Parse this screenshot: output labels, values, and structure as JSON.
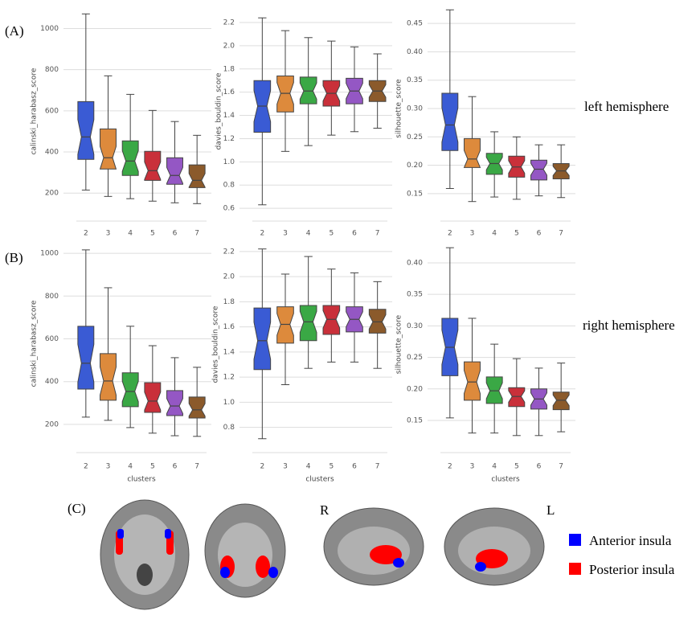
{
  "panels": [
    "(A)",
    "(B)",
    "(C)"
  ],
  "hemispheres": [
    "left hemisphere",
    "right hemisphere"
  ],
  "views": [
    "R",
    "L"
  ],
  "legend": [
    {
      "name": "Anterior insula",
      "color": "#0000ff"
    },
    {
      "name": "Posterior insula",
      "color": "#ff0000"
    }
  ],
  "chart_data": [
    {
      "type": "box",
      "ylabel": "calinski_harabasz_score",
      "categories": [
        "2",
        "3",
        "4",
        "5",
        "6",
        "7"
      ],
      "colors": [
        "#3a5bd4",
        "#dd8a3c",
        "#3aa845",
        "#c9303a",
        "#9457c4",
        "#8b5a2b"
      ],
      "min": [
        215,
        184,
        173,
        161,
        153,
        149
      ],
      "q1": [
        364,
        317,
        286,
        262,
        243,
        227
      ],
      "median": [
        473,
        372,
        356,
        309,
        286,
        262
      ],
      "q3": [
        645,
        512,
        454,
        403,
        372,
        337
      ],
      "max": [
        1071,
        770,
        680,
        602,
        548,
        481
      ],
      "ylim": [
        115,
        1080
      ],
      "yticks": [
        200,
        400,
        600,
        800,
        1000
      ],
      "grid": true
    },
    {
      "type": "box",
      "ylabel": "davies_bouldin_score",
      "categories": [
        "2",
        "3",
        "4",
        "5",
        "6",
        "7"
      ],
      "colors": [
        "#3a5bd4",
        "#dd8a3c",
        "#3aa845",
        "#c9303a",
        "#9457c4",
        "#8b5a2b"
      ],
      "min": [
        0.63,
        1.09,
        1.14,
        1.23,
        1.26,
        1.29
      ],
      "q1": [
        1.255,
        1.43,
        1.5,
        1.48,
        1.5,
        1.52
      ],
      "median": [
        1.48,
        1.59,
        1.61,
        1.59,
        1.61,
        1.61
      ],
      "q3": [
        1.7,
        1.74,
        1.73,
        1.7,
        1.72,
        1.7
      ],
      "max": [
        2.24,
        2.13,
        2.07,
        2.04,
        1.99,
        1.93
      ],
      "ylim": [
        0.58,
        2.29
      ],
      "yticks": [
        0.6,
        0.8,
        {
          "value": 1.0,
          "label": "1.0"
        },
        1.2,
        1.4,
        1.6,
        1.8,
        {
          "value": 2.0,
          "label": "2.0"
        },
        2.2
      ],
      "grid": true
    },
    {
      "type": "box",
      "ylabel": "silhouette_score",
      "categories": [
        "2",
        "3",
        "4",
        "5",
        "6",
        "7"
      ],
      "colors": [
        "#3a5bd4",
        "#dd8a3c",
        "#3aa845",
        "#c9303a",
        "#9457c4",
        "#8b5a2b"
      ],
      "min": [
        0.159,
        0.136,
        0.144,
        0.14,
        0.146,
        0.143
      ],
      "q1": [
        0.226,
        0.196,
        0.184,
        0.179,
        0.174,
        0.176
      ],
      "median": [
        0.271,
        0.211,
        0.203,
        0.197,
        0.193,
        0.19
      ],
      "q3": [
        0.327,
        0.247,
        0.221,
        0.216,
        0.209,
        0.203
      ],
      "max": [
        0.474,
        0.321,
        0.259,
        0.25,
        0.236,
        0.236
      ],
      "ylim": [
        0.12,
        0.48
      ],
      "yticks": [
        0.15,
        {
          "value": 0.2,
          "label": "0.20"
        },
        0.25,
        {
          "value": 0.3,
          "label": "0.30"
        },
        0.35,
        {
          "value": 0.4,
          "label": "0.40"
        },
        0.45
      ],
      "grid": true
    },
    {
      "type": "box",
      "ylabel": "calinski_harabasz_score",
      "xlabel": "clusters",
      "categories": [
        "2",
        "3",
        "4",
        "5",
        "6",
        "7"
      ],
      "colors": [
        "#3a5bd4",
        "#dd8a3c",
        "#3aa845",
        "#c9303a",
        "#9457c4",
        "#8b5a2b"
      ],
      "min": [
        234,
        219,
        185,
        159,
        147,
        144
      ],
      "q1": [
        365,
        313,
        283,
        256,
        241,
        230
      ],
      "median": [
        486,
        403,
        354,
        309,
        286,
        268
      ],
      "q3": [
        659,
        531,
        441,
        395,
        358,
        328
      ],
      "max": [
        1016,
        839,
        659,
        568,
        512,
        467
      ],
      "ylim": [
        117,
        1038
      ],
      "yticks": [
        200,
        400,
        600,
        800,
        1000
      ],
      "grid": true
    },
    {
      "type": "box",
      "ylabel": "davies_bouldin_score",
      "xlabel": "clusters",
      "categories": [
        "2",
        "3",
        "4",
        "5",
        "6",
        "7"
      ],
      "colors": [
        "#3a5bd4",
        "#dd8a3c",
        "#3aa845",
        "#c9303a",
        "#9457c4",
        "#8b5a2b"
      ],
      "min": [
        0.71,
        1.14,
        1.27,
        1.32,
        1.32,
        1.27
      ],
      "q1": [
        1.26,
        1.47,
        1.49,
        1.54,
        1.56,
        1.55
      ],
      "median": [
        1.49,
        1.62,
        1.64,
        1.66,
        1.66,
        1.64
      ],
      "q3": [
        1.75,
        1.76,
        1.77,
        1.77,
        1.76,
        1.74
      ],
      "max": [
        2.22,
        2.02,
        2.16,
        2.06,
        2.03,
        1.96
      ],
      "ylim": [
        0.67,
        2.25
      ],
      "yticks": [
        0.8,
        {
          "value": 1.0,
          "label": "1.0"
        },
        1.2,
        1.4,
        1.6,
        1.8,
        {
          "value": 2.0,
          "label": "2.0"
        },
        2.2
      ],
      "grid": true
    },
    {
      "type": "box",
      "ylabel": "silhouette_score",
      "xlabel": "clusters",
      "categories": [
        "2",
        "3",
        "4",
        "5",
        "6",
        "7"
      ],
      "colors": [
        "#3a5bd4",
        "#dd8a3c",
        "#3aa845",
        "#c9303a",
        "#9457c4",
        "#8b5a2b"
      ],
      "min": [
        0.154,
        0.13,
        0.13,
        0.126,
        0.126,
        0.132
      ],
      "q1": [
        0.221,
        0.182,
        0.177,
        0.172,
        0.168,
        0.167
      ],
      "median": [
        0.266,
        0.211,
        0.197,
        0.188,
        0.184,
        0.182
      ],
      "q3": [
        0.312,
        0.243,
        0.219,
        0.202,
        0.2,
        0.195
      ],
      "max": [
        0.424,
        0.312,
        0.271,
        0.248,
        0.233,
        0.241
      ],
      "ylim": [
        0.113,
        0.428
      ],
      "yticks": [
        0.15,
        {
          "value": 0.2,
          "label": "0.20"
        },
        0.25,
        {
          "value": 0.3,
          "label": "0.30"
        },
        0.35,
        {
          "value": 0.4,
          "label": "0.40"
        }
      ],
      "grid": true
    }
  ]
}
